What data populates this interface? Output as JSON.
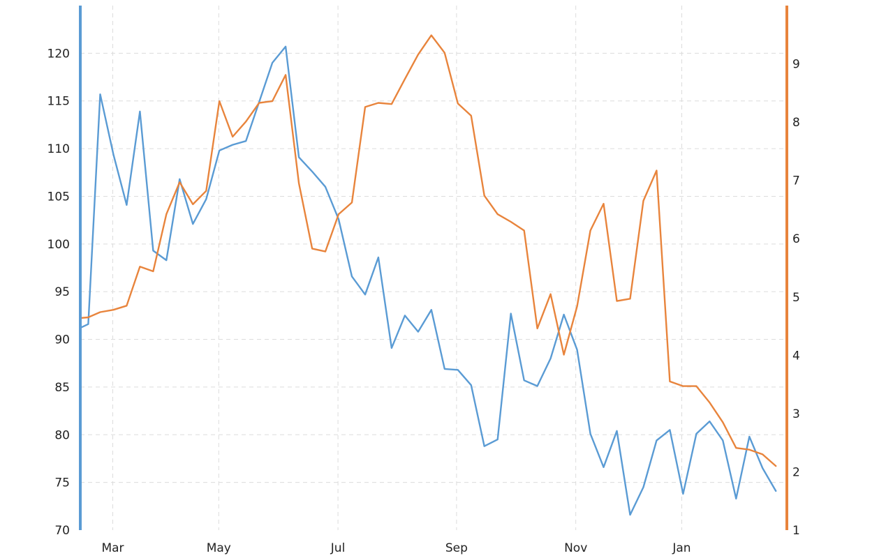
{
  "colors": {
    "left_axis": "#5a9bd4",
    "right_axis": "#e8843c",
    "grid": "#dcdcdc",
    "text": "#222222"
  },
  "chart_data": {
    "type": "line",
    "title": "",
    "grid": true,
    "x_ticks": [
      {
        "label": "Mar",
        "x": 3.35
      },
      {
        "label": "May",
        "x": 11.35
      },
      {
        "label": "Jul",
        "x": 20.35
      },
      {
        "label": "Sep",
        "x": 29.3
      },
      {
        "label": "Nov",
        "x": 38.3
      },
      {
        "label": "Jan",
        "x": 46.3
      }
    ],
    "xlim": [
      0.9,
      53.6
    ],
    "y_left": {
      "ylim": [
        70,
        125
      ],
      "ticks": [
        70,
        75,
        80,
        85,
        90,
        95,
        100,
        105,
        110,
        115,
        120
      ]
    },
    "y_right": {
      "ylim": [
        1,
        10
      ],
      "ticks": [
        1,
        2,
        3,
        4,
        5,
        6,
        7,
        8,
        9
      ]
    },
    "series": [
      {
        "axis": "left",
        "color": "#5a9bd4",
        "x": [
          0.9,
          1.5,
          2.4,
          3.4,
          4.4,
          5.4,
          6.4,
          7.4,
          8.4,
          9.4,
          10.4,
          11.4,
          12.4,
          13.4,
          14.4,
          15.4,
          16.4,
          17.4,
          18.4,
          19.4,
          20.4,
          21.4,
          22.4,
          23.4,
          24.4,
          25.4,
          26.4,
          27.4,
          28.4,
          29.4,
          30.4,
          31.4,
          32.4,
          33.4,
          34.4,
          35.4,
          36.4,
          37.4,
          38.4,
          39.4,
          40.4,
          41.4,
          42.4,
          43.4,
          44.4,
          45.4,
          46.4,
          47.4,
          48.4,
          49.4,
          50.4,
          51.4,
          52.4,
          53.4
        ],
        "values": [
          91.2,
          91.6,
          115.7,
          109.4,
          104.1,
          113.9,
          99.3,
          98.3,
          106.8,
          102.1,
          104.7,
          109.8,
          110.4,
          110.8,
          114.9,
          119.0,
          120.7,
          109.1,
          107.6,
          106.0,
          102.6,
          96.6,
          94.7,
          98.6,
          89.1,
          92.5,
          90.8,
          93.1,
          86.9,
          86.8,
          85.2,
          78.8,
          79.5,
          92.7,
          85.7,
          85.1,
          88.0,
          92.6,
          88.9,
          80.1,
          76.6,
          80.4,
          71.6,
          74.5,
          79.4,
          80.5,
          73.8,
          80.1,
          81.4,
          79.4,
          73.3,
          79.8,
          76.5,
          74.1
        ]
      },
      {
        "axis": "right",
        "color": "#e8843c",
        "x": [
          0.9,
          1.5,
          2.4,
          3.4,
          4.4,
          5.4,
          6.4,
          7.4,
          8.4,
          9.4,
          10.4,
          11.4,
          12.4,
          13.4,
          14.4,
          15.4,
          16.4,
          17.4,
          18.4,
          19.4,
          20.4,
          21.4,
          22.4,
          23.4,
          24.4,
          25.4,
          26.4,
          27.4,
          28.4,
          29.4,
          30.4,
          31.4,
          32.4,
          33.4,
          34.4,
          35.4,
          36.4,
          37.4,
          38.4,
          39.4,
          40.4,
          41.4,
          42.4,
          43.4,
          44.4,
          45.4,
          46.4,
          47.4,
          48.4,
          49.4,
          50.4,
          51.4,
          52.4,
          53.4
        ],
        "values": [
          4.64,
          4.65,
          4.74,
          4.78,
          4.85,
          5.52,
          5.44,
          6.42,
          6.97,
          6.59,
          6.82,
          8.36,
          7.75,
          8.01,
          8.33,
          8.36,
          8.81,
          6.95,
          5.83,
          5.78,
          6.42,
          6.62,
          8.26,
          8.33,
          8.31,
          8.74,
          9.16,
          9.49,
          9.19,
          8.32,
          8.11,
          6.74,
          6.42,
          6.29,
          6.14,
          4.46,
          5.05,
          4.01,
          4.84,
          6.14,
          6.6,
          4.93,
          4.97,
          6.65,
          7.17,
          3.55,
          3.47,
          3.47,
          3.19,
          2.85,
          2.41,
          2.38,
          2.3,
          2.1
        ]
      }
    ]
  }
}
